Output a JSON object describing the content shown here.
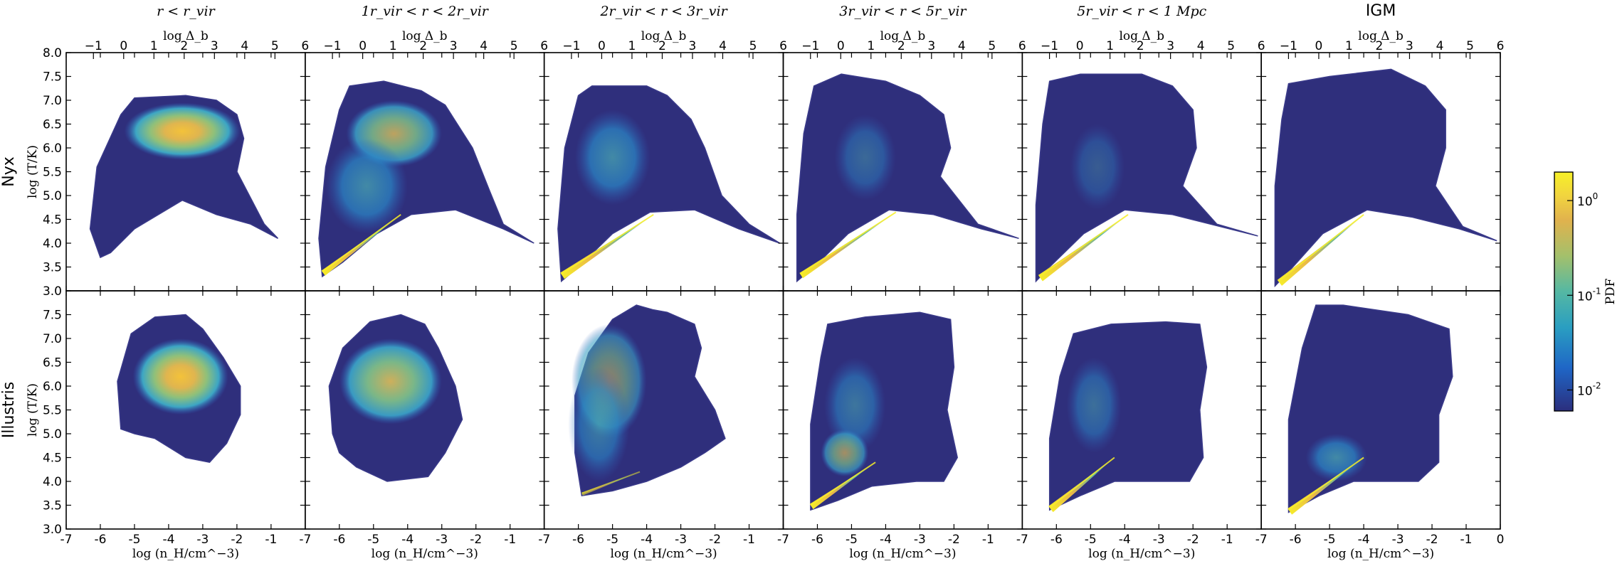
{
  "chart_data": {
    "type": "heatmap",
    "columns": [
      {
        "title": "r < r_vir",
        "style": "serif"
      },
      {
        "title": "1r_vir < r < 2r_vir",
        "style": "serif"
      },
      {
        "title": "2r_vir < r < 3r_vir",
        "style": "serif"
      },
      {
        "title": "3r_vir < r < 5r_vir",
        "style": "serif"
      },
      {
        "title": "5r_vir < r < 1 Mpc",
        "style": "serif"
      },
      {
        "title": "IGM",
        "style": "sans"
      }
    ],
    "rows": [
      "Nyx",
      "Illustris"
    ],
    "top_axis_label": "log Δ_b",
    "top_ticks": [
      "−1",
      "0",
      "1",
      "2",
      "3",
      "4",
      "5",
      "6"
    ],
    "top_tick_values": [
      -1,
      0,
      1,
      2,
      3,
      4,
      5,
      6
    ],
    "xlabel": "log (n_H/cm^−3)",
    "x_ticks": [
      "-7",
      "-6",
      "-5",
      "-4",
      "-3",
      "-2",
      "-1"
    ],
    "x_tick_values": [
      -7,
      -6,
      -5,
      -4,
      -3,
      -2,
      -1
    ],
    "x_last_tick": "0",
    "xlim": [
      -7,
      0
    ],
    "ylabel": "log (T/K)",
    "top_y_ticks": [
      "3.0",
      "3.5",
      "4.0",
      "4.5",
      "5.0",
      "5.5",
      "6.0",
      "6.5",
      "7.0",
      "7.5",
      "8.0"
    ],
    "top_y_values": [
      3.0,
      3.5,
      4.0,
      4.5,
      5.0,
      5.5,
      6.0,
      6.5,
      7.0,
      7.5,
      8.0
    ],
    "bottom_y_ticks": [
      "3.0",
      "3.5",
      "4.0",
      "4.5",
      "5.0",
      "5.5",
      "6.0",
      "6.5",
      "7.0",
      "7.5"
    ],
    "bottom_y_values": [
      3.0,
      3.5,
      4.0,
      4.5,
      5.0,
      5.5,
      6.0,
      6.5,
      7.0,
      7.5
    ],
    "ylim": [
      3.0,
      8.0
    ],
    "colorbar": {
      "label": "PDF",
      "scale": "log",
      "range": [
        0.006,
        2.0
      ],
      "ticks": [
        {
          "mantissa": "10",
          "exp": "0",
          "value": 1
        },
        {
          "mantissa": "10",
          "exp": "-1",
          "value": 0.1
        },
        {
          "mantissa": "10",
          "exp": "-2",
          "value": 0.01
        }
      ],
      "colors": [
        "#2b2e7d",
        "#1f66c6",
        "#2a9ec1",
        "#55b8a3",
        "#a4c06b",
        "#e1b24d",
        "#f1d43f",
        "#f7f028"
      ]
    },
    "background_color": "#2f2f7c"
  }
}
